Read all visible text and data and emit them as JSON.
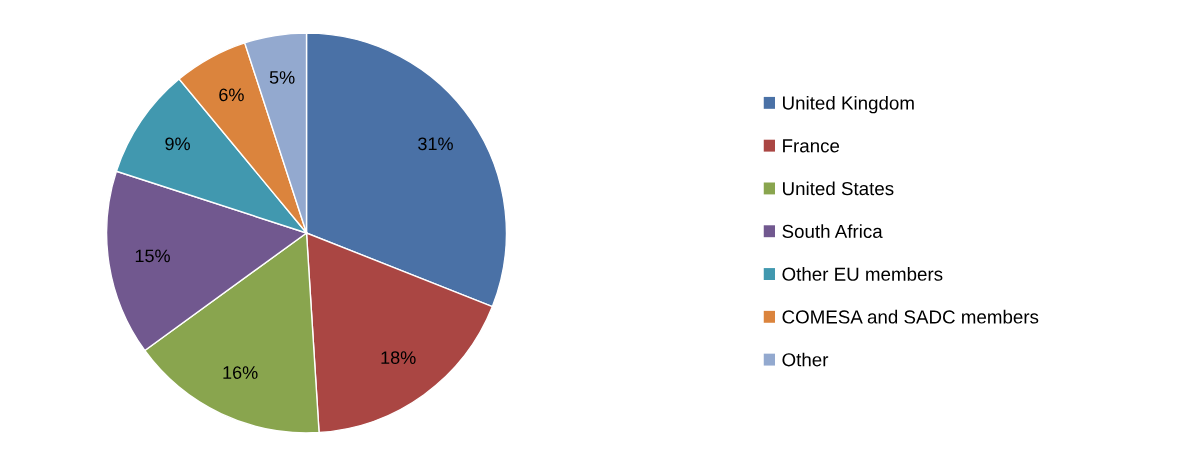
{
  "chart_data": {
    "type": "pie",
    "categories": [
      "United Kingdom",
      "France",
      "United States",
      "South Africa",
      "Other EU members",
      "COMESA and SADC members",
      "Other"
    ],
    "values": [
      31,
      18,
      16,
      15,
      9,
      6,
      5
    ],
    "colors": [
      "#4a71a6",
      "#aa4643",
      "#89a54e",
      "#71588f",
      "#4198af",
      "#db843d",
      "#93a9cf"
    ],
    "value_labels": [
      "31%",
      "18%",
      "16%",
      "15%",
      "9%",
      "6%",
      "5%"
    ],
    "legend": "right"
  }
}
